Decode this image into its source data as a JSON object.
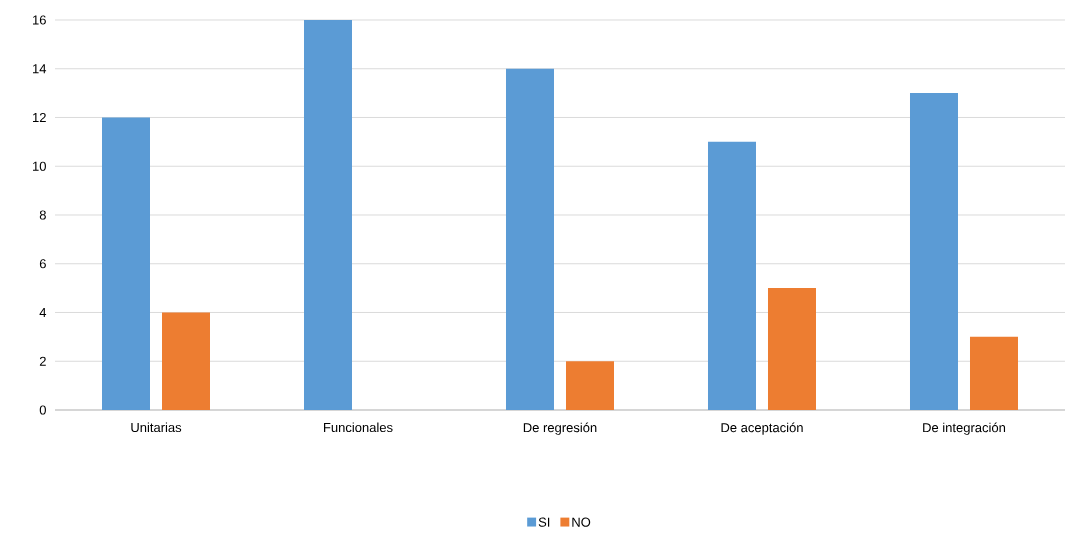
{
  "chart_data": {
    "type": "bar",
    "categories": [
      "Unitarias",
      "Funcionales",
      "De regresión",
      "De aceptación",
      "De integración"
    ],
    "series": [
      {
        "name": "SI",
        "color": "#5b9bd5",
        "values": [
          12,
          16,
          14,
          11,
          13
        ]
      },
      {
        "name": "NO",
        "color": "#ed7d31",
        "values": [
          4,
          0,
          2,
          5,
          3
        ]
      }
    ],
    "ylim": [
      0,
      16
    ],
    "yticks": [
      0,
      2,
      4,
      6,
      8,
      10,
      12,
      14,
      16
    ],
    "grid": "y",
    "legend": "bottom"
  }
}
